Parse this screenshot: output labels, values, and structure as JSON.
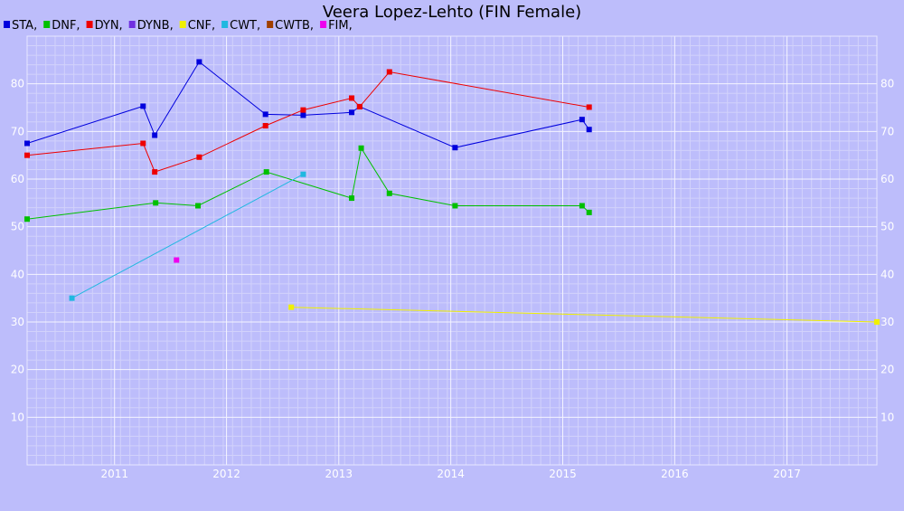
{
  "chart_data": {
    "type": "line",
    "title": "Veera Lopez-Lehto (FIN Female)",
    "xlabel": "",
    "ylabel": "",
    "x_type": "date",
    "xlim": [
      "2010-03-22",
      "2017-10-21"
    ],
    "ylim": [
      0,
      90
    ],
    "x_ticks": [
      "2011",
      "2012",
      "2013",
      "2014",
      "2015",
      "2016",
      "2017"
    ],
    "y_ticks": [
      10,
      20,
      30,
      40,
      50,
      60,
      70,
      80
    ],
    "grid": true,
    "legend_position": "top-left",
    "series": [
      {
        "name": "STA",
        "color": "#0000dd",
        "points": [
          {
            "x": "2010-03-22",
            "y": 67.5
          },
          {
            "x": "2011-04-04",
            "y": 75.3
          },
          {
            "x": "2011-05-12",
            "y": 69.2
          },
          {
            "x": "2011-10-04",
            "y": 84.6
          },
          {
            "x": "2012-05-07",
            "y": 73.6
          },
          {
            "x": "2012-09-07",
            "y": 73.4
          },
          {
            "x": "2013-02-12",
            "y": 74.0
          },
          {
            "x": "2013-03-10",
            "y": 75.2
          },
          {
            "x": "2014-01-15",
            "y": 66.6
          },
          {
            "x": "2015-03-05",
            "y": 72.5
          },
          {
            "x": "2015-03-28",
            "y": 70.4
          }
        ]
      },
      {
        "name": "DNF",
        "color": "#00c000",
        "points": [
          {
            "x": "2010-03-22",
            "y": 51.6
          },
          {
            "x": "2011-05-15",
            "y": 55.0
          },
          {
            "x": "2011-09-30",
            "y": 54.4
          },
          {
            "x": "2012-05-10",
            "y": 61.5
          },
          {
            "x": "2013-02-12",
            "y": 56.0
          },
          {
            "x": "2013-03-15",
            "y": 66.5
          },
          {
            "x": "2013-06-15",
            "y": 57.0
          },
          {
            "x": "2014-01-15",
            "y": 54.4
          },
          {
            "x": "2015-03-05",
            "y": 54.4
          },
          {
            "x": "2015-03-28",
            "y": 53.0
          }
        ]
      },
      {
        "name": "DYN",
        "color": "#ee0000",
        "points": [
          {
            "x": "2010-03-22",
            "y": 65.0
          },
          {
            "x": "2011-04-04",
            "y": 67.5
          },
          {
            "x": "2011-05-12",
            "y": 61.5
          },
          {
            "x": "2011-10-04",
            "y": 64.6
          },
          {
            "x": "2012-05-07",
            "y": 71.2
          },
          {
            "x": "2012-09-07",
            "y": 74.5
          },
          {
            "x": "2013-02-12",
            "y": 77.0
          },
          {
            "x": "2013-03-10",
            "y": 75.2
          },
          {
            "x": "2013-06-15",
            "y": 82.5
          },
          {
            "x": "2015-03-28",
            "y": 75.1
          }
        ]
      },
      {
        "name": "DYNB",
        "color": "#7030e0",
        "points": []
      },
      {
        "name": "CNF",
        "color": "#f0f000",
        "points": [
          {
            "x": "2012-07-30",
            "y": 33.1
          },
          {
            "x": "2017-10-21",
            "y": 30.0
          }
        ]
      },
      {
        "name": "CWT",
        "color": "#20b8e0",
        "points": [
          {
            "x": "2010-08-15",
            "y": 35.0
          },
          {
            "x": "2012-09-07",
            "y": 61.0
          }
        ]
      },
      {
        "name": "CWTB",
        "color": "#a04000",
        "points": []
      },
      {
        "name": "FIM",
        "color": "#ee00ee",
        "points": [
          {
            "x": "2011-07-22",
            "y": 43.0
          }
        ]
      }
    ]
  }
}
